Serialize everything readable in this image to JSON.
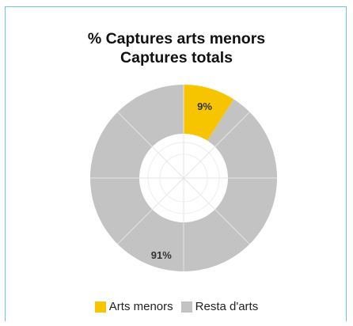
{
  "chart_data": {
    "type": "pie",
    "donut": true,
    "title_lines": [
      "% Captures arts menors",
      "Captures totals"
    ],
    "slices": [
      {
        "label": "Arts menors",
        "value": 9,
        "display": "9%",
        "color": "#f7c500"
      },
      {
        "label": "Resta d'arts",
        "value": 91,
        "display": "91%",
        "color": "#c3c3c3"
      }
    ],
    "legend_position": "bottom"
  }
}
